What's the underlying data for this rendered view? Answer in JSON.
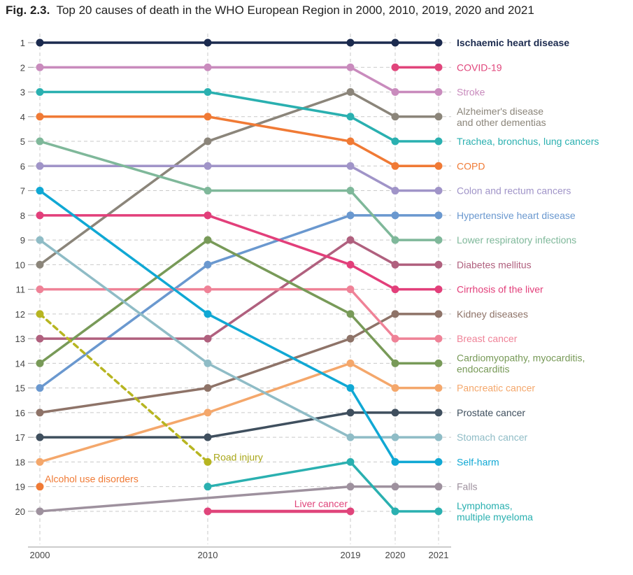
{
  "chart_data": {
    "type": "line",
    "title_prefix": "Fig. 2.3.",
    "title": "Top 20 causes of death in the WHO European Region in 2000, 2010, 2019, 2020 and 2021",
    "x": [
      2000,
      2010,
      2019,
      2020,
      2021
    ],
    "y_ticks": [
      1,
      2,
      3,
      4,
      5,
      6,
      7,
      8,
      9,
      10,
      11,
      12,
      13,
      14,
      15,
      16,
      17,
      18,
      19,
      20
    ],
    "ylim": [
      1,
      20
    ],
    "y_inverted": true,
    "grid": true,
    "series": [
      {
        "key": "ihd",
        "name": [
          "Ischaemic heart disease"
        ],
        "color": "#1b2a4e",
        "ranks": [
          1,
          1,
          1,
          1,
          1
        ],
        "label_bold": true
      },
      {
        "key": "covid",
        "name": [
          "COVID-19"
        ],
        "color": "#e0457b",
        "ranks": [
          null,
          null,
          null,
          2,
          2
        ]
      },
      {
        "key": "stroke",
        "name": [
          "Stroke"
        ],
        "color": "#c98bbd",
        "ranks": [
          2,
          2,
          2,
          3,
          3
        ]
      },
      {
        "key": "alz",
        "name": [
          "Alzheimer's disease",
          "and other dementias"
        ],
        "color": "#8b857a",
        "ranks": [
          10,
          5,
          3,
          4,
          4
        ]
      },
      {
        "key": "lung",
        "name": [
          "Trachea, bronchus, lung cancers"
        ],
        "color": "#2ab0b0",
        "ranks": [
          3,
          3,
          4,
          5,
          5
        ]
      },
      {
        "key": "copd",
        "name": [
          "COPD"
        ],
        "color": "#f07a35",
        "ranks": [
          4,
          4,
          5,
          6,
          6
        ]
      },
      {
        "key": "colon",
        "name": [
          "Colon and rectum cancers"
        ],
        "color": "#a094c8",
        "ranks": [
          6,
          6,
          6,
          7,
          7
        ]
      },
      {
        "key": "hyper",
        "name": [
          "Hypertensive heart disease"
        ],
        "color": "#6a98cf",
        "ranks": [
          15,
          10,
          8,
          8,
          8
        ]
      },
      {
        "key": "lri",
        "name": [
          "Lower respiratory infections"
        ],
        "color": "#7fb89a",
        "ranks": [
          5,
          7,
          7,
          9,
          9
        ]
      },
      {
        "key": "diab",
        "name": [
          "Diabetes mellitus"
        ],
        "color": "#b0607e",
        "ranks": [
          13,
          13,
          9,
          10,
          10
        ]
      },
      {
        "key": "cirr",
        "name": [
          "Cirrhosis of the liver"
        ],
        "color": "#e23f7a",
        "ranks": [
          8,
          8,
          10,
          11,
          11
        ]
      },
      {
        "key": "kidney",
        "name": [
          "Kidney diseases"
        ],
        "color": "#8e7368",
        "ranks": [
          16,
          15,
          13,
          12,
          12
        ]
      },
      {
        "key": "breast",
        "name": [
          "Breast cancer"
        ],
        "color": "#ef8297",
        "ranks": [
          11,
          11,
          11,
          13,
          13
        ]
      },
      {
        "key": "cardio",
        "name": [
          "Cardiomyopathy, myocarditis,",
          "endocarditis"
        ],
        "color": "#789a58",
        "ranks": [
          14,
          9,
          12,
          14,
          14
        ]
      },
      {
        "key": "panc",
        "name": [
          "Pancreatic cancer"
        ],
        "color": "#f4a76b",
        "ranks": [
          18,
          16,
          14,
          15,
          15
        ]
      },
      {
        "key": "prost",
        "name": [
          "Prostate cancer"
        ],
        "color": "#3f4f5e",
        "ranks": [
          17,
          17,
          16,
          16,
          16
        ]
      },
      {
        "key": "stom",
        "name": [
          "Stomach cancer"
        ],
        "color": "#8fbcc6",
        "ranks": [
          9,
          14,
          17,
          17,
          17
        ]
      },
      {
        "key": "self",
        "name": [
          "Self-harm"
        ],
        "color": "#10a8d4",
        "ranks": [
          7,
          12,
          15,
          18,
          18
        ]
      },
      {
        "key": "falls",
        "name": [
          "Falls"
        ],
        "color": "#9e919e",
        "ranks": [
          20,
          null,
          19,
          19,
          19
        ]
      },
      {
        "key": "lymph",
        "name": [
          "Lymphomas,",
          "multiple myeloma"
        ],
        "color": "#2ab0b0",
        "ranks": [
          null,
          19,
          18,
          20,
          20
        ]
      },
      {
        "key": "road",
        "name": [
          "Road injury"
        ],
        "color": "#b7b521",
        "ranks": [
          12,
          18,
          null,
          null,
          null
        ],
        "dashed": true
      },
      {
        "key": "alco",
        "name": [
          "Alcohol use disorders"
        ],
        "color": "#f07a35",
        "ranks": [
          19,
          null,
          null,
          null,
          null
        ]
      },
      {
        "key": "liver",
        "name": [
          "Liver cancer"
        ],
        "color": "#e0457b",
        "ranks": [
          null,
          20,
          20,
          null,
          null
        ]
      }
    ],
    "inline_labels": {
      "road": "Road injury",
      "alco": "Alcohol use disorders",
      "liver": "Liver cancer"
    }
  }
}
